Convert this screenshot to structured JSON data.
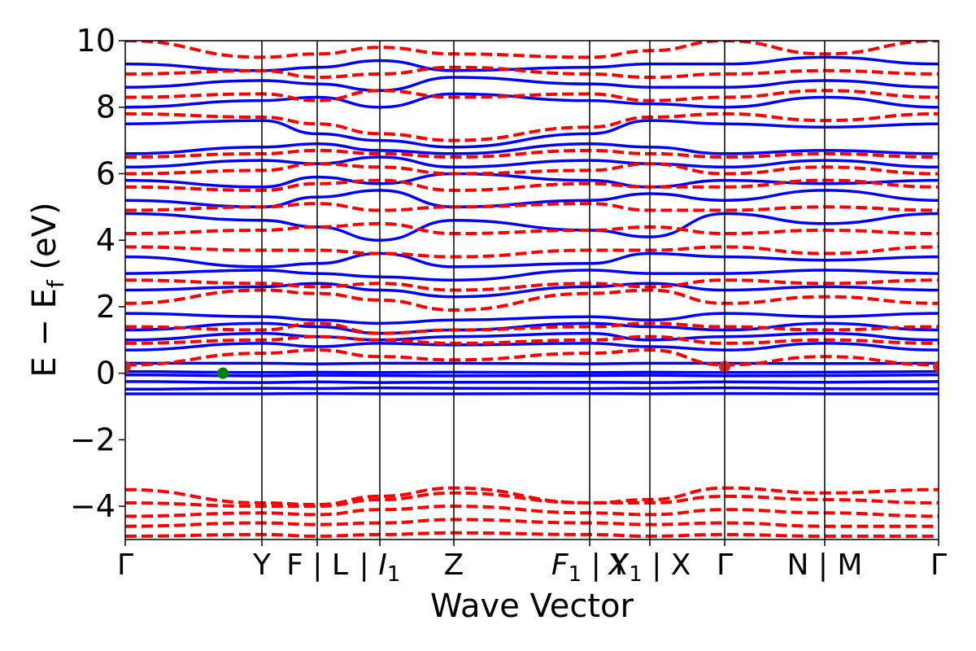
{
  "chart_data": {
    "type": "line",
    "title": "",
    "xlabel": "Wave Vector",
    "ylabel": "E − E",
    "ylabel_sub": "f",
    "ylabel_unit": " (eV)",
    "ylim": [
      -5,
      10
    ],
    "yticks": [
      10,
      8,
      6,
      4,
      2,
      0,
      -2,
      -4
    ],
    "ytick_labels": [
      "10",
      "8",
      "6",
      "4",
      "2",
      "0",
      "−2",
      "−4"
    ],
    "kpath": [
      {
        "label": "Γ",
        "x": 0.0
      },
      {
        "label": "Y",
        "x": 0.168
      },
      {
        "label": "F | L",
        "x": 0.236
      },
      {
        "label": "I",
        "sub": "1",
        "prefix": "| ",
        "x": 0.313
      },
      {
        "label": "Z",
        "x": 0.404
      },
      {
        "label": "F",
        "sub": "1",
        "suffix": " | Y",
        "x": 0.571
      },
      {
        "label": "X",
        "sub": "1",
        "suffix": " | X",
        "x": 0.645
      },
      {
        "label": "Γ",
        "x": 0.737
      },
      {
        "label": "N | M",
        "x": 0.86
      },
      {
        "label": "Γ",
        "x": 1.0
      }
    ],
    "vertical_lines_at": [
      0.168,
      0.236,
      0.313,
      0.404,
      0.571,
      0.645,
      0.737,
      0.86
    ],
    "series": [
      {
        "style": "solid",
        "color": "#0000ff",
        "bands": [
          [
            -0.62,
            -0.62,
            -0.61,
            -0.62,
            -0.62,
            -0.61,
            -0.62,
            -0.61,
            -0.62,
            -0.62
          ],
          [
            -0.48,
            -0.45,
            -0.46,
            -0.44,
            -0.45,
            -0.46,
            -0.45,
            -0.44,
            -0.46,
            -0.47
          ],
          [
            -0.25,
            -0.28,
            -0.26,
            -0.28,
            -0.27,
            -0.27,
            -0.28,
            -0.26,
            -0.27,
            -0.25
          ],
          [
            -0.05,
            -0.08,
            -0.06,
            -0.07,
            -0.08,
            -0.07,
            -0.06,
            -0.08,
            -0.07,
            -0.05
          ],
          [
            0.05,
            0.02,
            0.03,
            0.02,
            0.03,
            0.02,
            0.03,
            0.02,
            0.03,
            0.05
          ],
          [
            0.3,
            0.3,
            0.28,
            0.3,
            0.3,
            0.28,
            0.3,
            0.3,
            0.29,
            0.3
          ],
          [
            0.7,
            0.9,
            0.8,
            0.9,
            0.85,
            0.9,
            0.8,
            0.7,
            0.9,
            0.7
          ],
          [
            1.0,
            1.2,
            1.1,
            1.0,
            1.1,
            1.2,
            1.0,
            1.1,
            1.2,
            1.0
          ],
          [
            1.3,
            1.5,
            1.4,
            1.2,
            1.3,
            1.5,
            1.4,
            1.3,
            1.5,
            1.3
          ],
          [
            1.8,
            1.7,
            1.6,
            1.5,
            1.6,
            1.7,
            1.6,
            1.8,
            1.7,
            1.8
          ],
          [
            2.5,
            2.6,
            2.7,
            2.5,
            2.3,
            2.6,
            2.7,
            2.5,
            2.6,
            2.5
          ],
          [
            3.0,
            3.1,
            3.0,
            2.9,
            2.8,
            3.1,
            3.0,
            3.0,
            3.1,
            3.0
          ],
          [
            3.5,
            3.2,
            3.3,
            3.6,
            3.2,
            3.3,
            3.6,
            3.5,
            3.4,
            3.5
          ],
          [
            4.8,
            4.6,
            4.4,
            4.0,
            4.6,
            4.3,
            4.1,
            4.8,
            4.5,
            4.8
          ],
          [
            5.2,
            5.0,
            5.3,
            5.5,
            5.0,
            5.2,
            5.4,
            5.2,
            5.5,
            5.2
          ],
          [
            5.8,
            5.6,
            5.9,
            5.7,
            6.0,
            5.8,
            5.6,
            5.8,
            5.7,
            5.8
          ],
          [
            6.2,
            6.4,
            6.3,
            6.5,
            6.2,
            6.4,
            6.3,
            6.2,
            6.4,
            6.2
          ],
          [
            6.6,
            6.8,
            6.9,
            6.7,
            6.6,
            6.9,
            6.8,
            6.6,
            6.7,
            6.6
          ],
          [
            7.5,
            7.6,
            7.2,
            7.0,
            6.8,
            7.2,
            7.6,
            7.5,
            7.4,
            7.5
          ],
          [
            8.0,
            8.2,
            8.3,
            8.0,
            8.4,
            8.2,
            8.1,
            8.0,
            8.3,
            8.0
          ],
          [
            8.6,
            8.8,
            8.7,
            8.5,
            8.9,
            8.7,
            8.6,
            8.6,
            8.8,
            8.6
          ],
          [
            9.3,
            9.1,
            9.2,
            9.4,
            9.1,
            9.2,
            9.3,
            9.3,
            9.5,
            9.3
          ]
        ]
      },
      {
        "style": "dashed",
        "color": "#ff0000",
        "bands": [
          [
            -4.9,
            -4.85,
            -4.9,
            -4.85,
            -4.8,
            -4.85,
            -4.9,
            -4.85,
            -4.9,
            -4.9
          ],
          [
            -4.6,
            -4.5,
            -4.55,
            -4.5,
            -4.4,
            -4.5,
            -4.55,
            -4.5,
            -4.6,
            -4.6
          ],
          [
            -4.3,
            -4.2,
            -4.25,
            -4.1,
            -4.0,
            -4.2,
            -4.25,
            -4.1,
            -4.2,
            -4.3
          ],
          [
            -3.9,
            -4.0,
            -4.0,
            -3.8,
            -3.6,
            -3.9,
            -3.9,
            -3.7,
            -3.8,
            -3.9
          ],
          [
            -3.5,
            -3.9,
            -3.95,
            -3.7,
            -3.45,
            -3.9,
            -3.8,
            -3.45,
            -3.6,
            -3.5
          ],
          [
            0.25,
            0.6,
            0.7,
            0.5,
            0.4,
            0.6,
            0.7,
            0.25,
            0.5,
            0.25
          ],
          [
            0.9,
            1.0,
            1.1,
            1.0,
            0.9,
            1.0,
            1.1,
            0.9,
            1.0,
            0.9
          ],
          [
            1.4,
            1.3,
            1.5,
            1.2,
            1.3,
            1.4,
            1.5,
            1.4,
            1.3,
            1.4
          ],
          [
            2.1,
            2.5,
            2.4,
            2.2,
            1.9,
            2.4,
            2.5,
            2.1,
            2.3,
            2.1
          ],
          [
            2.8,
            2.7,
            2.6,
            2.7,
            2.5,
            2.7,
            2.6,
            2.8,
            2.7,
            2.8
          ],
          [
            3.8,
            3.7,
            3.7,
            3.6,
            3.5,
            3.7,
            3.7,
            3.8,
            3.6,
            3.8
          ],
          [
            4.2,
            4.3,
            4.4,
            4.5,
            4.2,
            4.3,
            4.4,
            4.2,
            4.3,
            4.2
          ],
          [
            4.9,
            5.0,
            5.1,
            4.9,
            5.0,
            5.1,
            4.9,
            4.9,
            5.0,
            4.9
          ],
          [
            5.6,
            5.5,
            5.7,
            5.8,
            5.5,
            5.7,
            5.6,
            5.6,
            5.8,
            5.6
          ],
          [
            6.0,
            6.1,
            6.3,
            6.2,
            6.0,
            6.1,
            6.3,
            6.0,
            6.2,
            6.0
          ],
          [
            6.5,
            6.6,
            6.7,
            6.6,
            6.5,
            6.7,
            6.6,
            6.5,
            6.6,
            6.5
          ],
          [
            7.8,
            7.7,
            7.5,
            7.2,
            7.0,
            7.4,
            7.7,
            7.8,
            7.6,
            7.8
          ],
          [
            8.3,
            8.4,
            8.2,
            8.5,
            8.3,
            8.4,
            8.2,
            8.3,
            8.5,
            8.3
          ],
          [
            9.0,
            9.1,
            8.9,
            9.0,
            9.2,
            9.0,
            8.9,
            9.0,
            9.1,
            9.0
          ],
          [
            10.0,
            9.5,
            9.6,
            9.8,
            9.6,
            9.5,
            9.7,
            10.0,
            9.6,
            10.0
          ]
        ]
      }
    ],
    "markers": [
      {
        "x": 0.0,
        "y": 0.2,
        "color": "#d62728"
      },
      {
        "x": 0.12,
        "y": 0.0,
        "color": "#007f00"
      },
      {
        "x": 0.737,
        "y": 0.2,
        "color": "#d62728"
      },
      {
        "x": 1.0,
        "y": 0.2,
        "color": "#d62728"
      }
    ]
  }
}
